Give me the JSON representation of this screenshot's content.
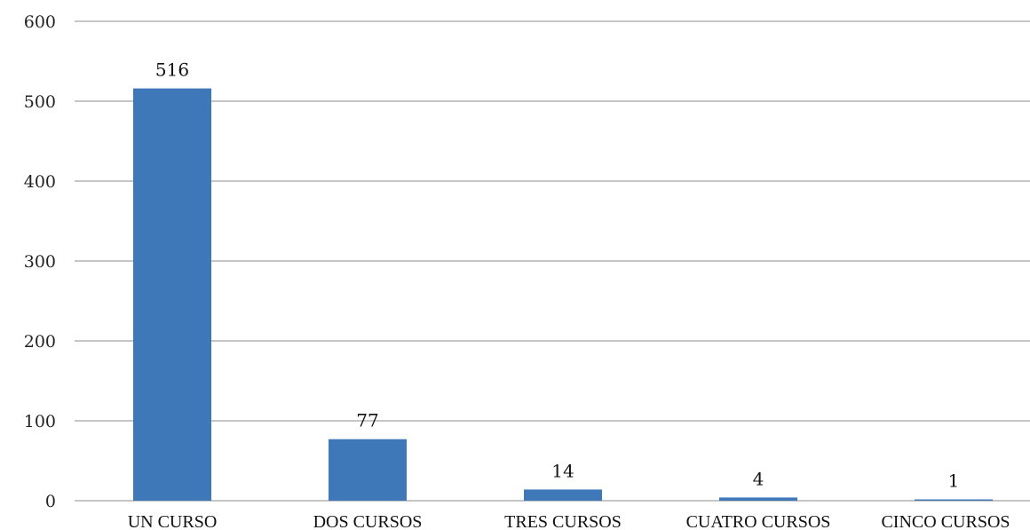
{
  "chart_data": {
    "type": "bar",
    "title": "",
    "xlabel": "",
    "ylabel": "",
    "categories": [
      "UN CURSO",
      "DOS CURSOS",
      "TRES CURSOS",
      "CUATRO CURSOS",
      "CINCO CURSOS"
    ],
    "values": [
      516,
      77,
      14,
      4,
      1
    ],
    "data_labels": [
      "516",
      "77",
      "14",
      "4",
      "1"
    ],
    "ylim": [
      0,
      600
    ],
    "yticks": [
      0,
      100,
      200,
      300,
      400,
      500,
      600
    ],
    "ytick_labels": [
      "0",
      "100",
      "200",
      "300",
      "400",
      "500",
      "600"
    ],
    "grid": true,
    "legend": "none",
    "bar_color": "#3f78b8",
    "grid_color": "#8c8c8c"
  }
}
